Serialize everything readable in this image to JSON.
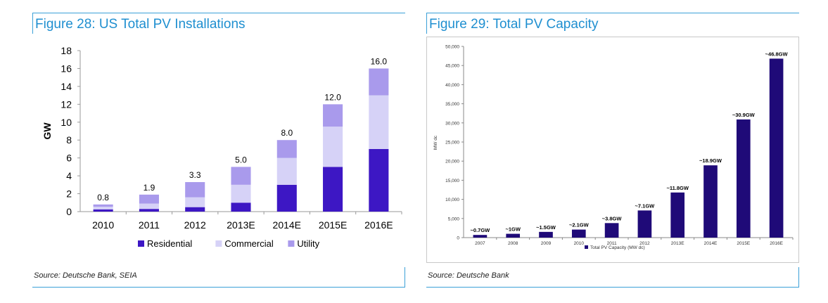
{
  "figures": [
    {
      "title": "Figure 28: US Total PV Installations",
      "source": "Source: Deutsche Bank, SEIA"
    },
    {
      "title": "Figure 29: Total PV Capacity",
      "source": "Source: Deutsche Bank"
    }
  ],
  "chart_data": [
    {
      "type": "bar",
      "stacked": true,
      "categories": [
        "2010",
        "2011",
        "2012",
        "2013E",
        "2014E",
        "2015E",
        "2016E"
      ],
      "series": [
        {
          "name": "Residential",
          "color": "#3d17c4",
          "values": [
            0.25,
            0.3,
            0.5,
            1.0,
            3.0,
            5.0,
            7.0
          ]
        },
        {
          "name": "Commercial",
          "color": "#d6d2f7",
          "values": [
            0.3,
            0.6,
            1.1,
            2.0,
            3.0,
            4.5,
            6.0
          ]
        },
        {
          "name": "Utility",
          "color": "#a99aec",
          "values": [
            0.25,
            1.0,
            1.7,
            2.0,
            2.0,
            2.5,
            3.0
          ]
        }
      ],
      "totals": [
        "0.8",
        "1.9",
        "3.3",
        "5.0",
        "8.0",
        "12.0",
        "16.0"
      ],
      "ylabel": "GW",
      "ylim": [
        0,
        18
      ],
      "yticks": [
        "0",
        "2",
        "4",
        "6",
        "8",
        "10",
        "12",
        "14",
        "16",
        "18"
      ],
      "legend_position": "bottom",
      "grid": false
    },
    {
      "type": "bar",
      "categories": [
        "2007",
        "2008",
        "2009",
        "2010",
        "2011",
        "2012",
        "2013E",
        "2014E",
        "2015E",
        "2016E"
      ],
      "series": [
        {
          "name": "Total PV Capacity (MW dc)",
          "color": "#1f0a78",
          "values": [
            700,
            1000,
            1500,
            2100,
            3800,
            7100,
            11800,
            18900,
            30900,
            46800
          ]
        }
      ],
      "data_labels": [
        "~0.7GW",
        "~1GW",
        "~1.5GW",
        "~2.1GW",
        "~3.8GW",
        "~7.1GW",
        "~11.8GW",
        "~18.9GW",
        "~30.9GW",
        "~46.8GW"
      ],
      "ylabel": "MW dc",
      "ylim": [
        0,
        50000
      ],
      "yticks": [
        "0",
        "5,000",
        "10,000",
        "15,000",
        "20,000",
        "25,000",
        "30,000",
        "35,000",
        "40,000",
        "45,000",
        "50,000"
      ],
      "legend_position": "bottom",
      "grid": false
    }
  ]
}
